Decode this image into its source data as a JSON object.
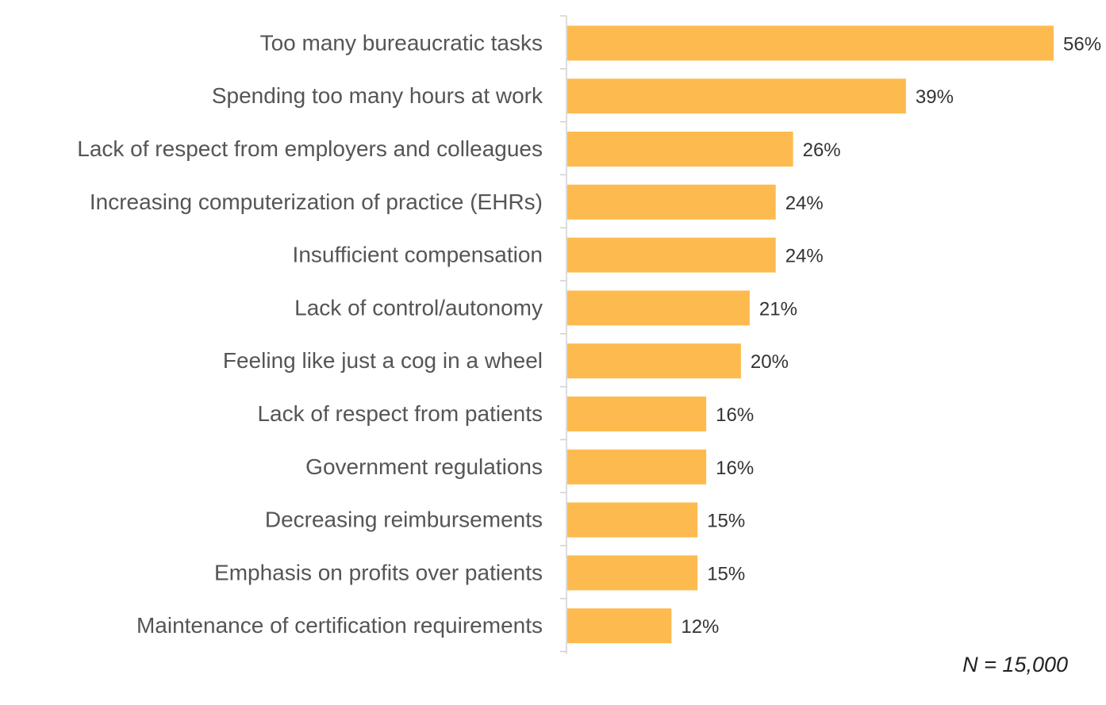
{
  "chart_data": {
    "type": "bar",
    "orientation": "horizontal",
    "title": "",
    "xlabel": "",
    "ylabel": "",
    "categories": [
      "Too many bureaucratic tasks",
      "Spending too many hours at work",
      "Lack of respect from employers and colleagues",
      "Increasing computerization of practice (EHRs)",
      "Insufficient compensation",
      "Lack of control/autonomy",
      "Feeling like just a cog in a wheel",
      "Lack of respect from patients",
      "Government regulations",
      "Decreasing reimbursements",
      "Emphasis on profits over patients",
      "Maintenance of certification requirements"
    ],
    "values": [
      56,
      39,
      26,
      24,
      24,
      21,
      20,
      16,
      16,
      15,
      15,
      12
    ],
    "value_labels": [
      "56%",
      "39%",
      "26%",
      "24%",
      "24%",
      "21%",
      "20%",
      "16%",
      "16%",
      "15%",
      "15%",
      "12%"
    ],
    "xlim": [
      0,
      56
    ],
    "grid": false,
    "legend": "none",
    "bar_color": "#FDBB4F",
    "axis_color": "#D0D0D0",
    "annotation": "N = 15,000"
  }
}
